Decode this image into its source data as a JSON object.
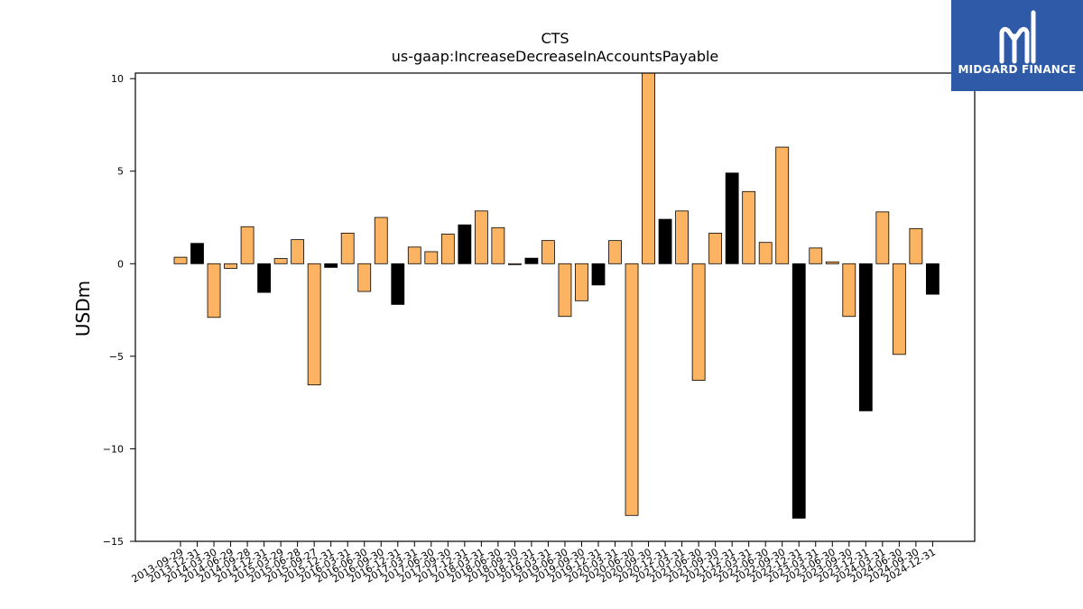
{
  "brand": {
    "name": "MIDGARD FINANCE",
    "colors": {
      "background": "#2f5aa8",
      "text": "#ffffff"
    },
    "icon": "midgard-m-logo"
  },
  "colors": {
    "orange": "#fdb462",
    "black": "#000000",
    "edge": "#000000"
  },
  "chart_data": {
    "type": "bar",
    "title": "CTS",
    "subtitle": "us-gaap:IncreaseDecreaseInAccountsPayable",
    "xlabel": "",
    "ylabel": "USDm",
    "ylim": [
      -15,
      10.3
    ],
    "yticks": [
      10,
      5,
      0,
      -5,
      -10,
      -15
    ],
    "ytick_labels": [
      "10",
      "5",
      "0",
      "−5",
      "−10",
      "−15"
    ],
    "grid": false,
    "legend": "none",
    "categories": [
      "2013-09-29",
      "2013-12-31",
      "2014-03-30",
      "2014-06-29",
      "2014-09-28",
      "2014-12-31",
      "2015-03-29",
      "2015-06-28",
      "2015-09-27",
      "2015-12-31",
      "2016-03-31",
      "2016-06-30",
      "2016-09-30",
      "2016-12-31",
      "2017-03-31",
      "2017-06-30",
      "2017-09-30",
      "2017-12-31",
      "2018-03-31",
      "2018-06-30",
      "2018-09-30",
      "2018-12-31",
      "2019-03-31",
      "2019-06-30",
      "2019-09-30",
      "2019-12-31",
      "2020-03-31",
      "2020-06-30",
      "2020-09-30",
      "2020-12-31",
      "2021-03-31",
      "2021-06-30",
      "2021-09-30",
      "2021-12-31",
      "2022-03-31",
      "2022-06-30",
      "2022-09-30",
      "2022-12-31",
      "2023-03-31",
      "2023-06-30",
      "2023-09-30",
      "2023-12-31",
      "2024-03-31",
      "2024-06-30",
      "2024-09-30",
      "2024-12-31"
    ],
    "values": [
      0.35,
      1.1,
      -2.9,
      -0.25,
      2.0,
      -1.55,
      0.28,
      1.3,
      -6.55,
      -0.2,
      1.65,
      -1.5,
      2.5,
      -2.2,
      0.9,
      0.65,
      1.6,
      2.1,
      2.85,
      1.95,
      -0.05,
      0.3,
      1.25,
      -2.85,
      -2.0,
      -1.15,
      1.25,
      -13.6,
      10.3,
      2.4,
      2.85,
      -6.3,
      1.65,
      4.9,
      3.9,
      1.15,
      6.3,
      -13.75,
      0.85,
      0.1,
      -2.85,
      -7.95,
      2.8,
      -4.9,
      1.9,
      -1.65
    ],
    "bar_colors": [
      "orange",
      "black",
      "orange",
      "orange",
      "orange",
      "black",
      "orange",
      "orange",
      "orange",
      "black",
      "orange",
      "orange",
      "orange",
      "black",
      "orange",
      "orange",
      "orange",
      "black",
      "orange",
      "orange",
      "orange",
      "black",
      "orange",
      "orange",
      "orange",
      "black",
      "orange",
      "orange",
      "orange",
      "black",
      "orange",
      "orange",
      "orange",
      "black",
      "orange",
      "orange",
      "orange",
      "black",
      "orange",
      "orange",
      "orange",
      "black",
      "orange",
      "orange",
      "orange",
      "black"
    ]
  }
}
